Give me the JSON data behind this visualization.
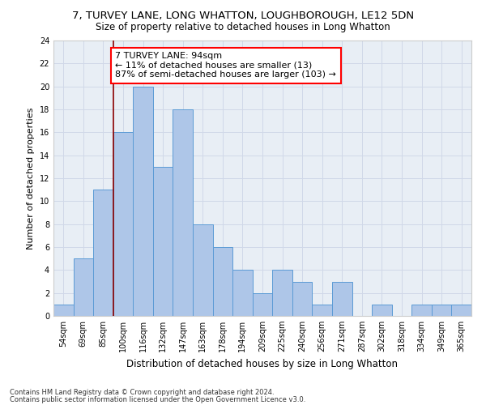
{
  "title1": "7, TURVEY LANE, LONG WHATTON, LOUGHBOROUGH, LE12 5DN",
  "title2": "Size of property relative to detached houses in Long Whatton",
  "xlabel": "Distribution of detached houses by size in Long Whatton",
  "ylabel": "Number of detached properties",
  "footnote1": "Contains HM Land Registry data © Crown copyright and database right 2024.",
  "footnote2": "Contains public sector information licensed under the Open Government Licence v3.0.",
  "categories": [
    "54sqm",
    "69sqm",
    "85sqm",
    "100sqm",
    "116sqm",
    "132sqm",
    "147sqm",
    "163sqm",
    "178sqm",
    "194sqm",
    "209sqm",
    "225sqm",
    "240sqm",
    "256sqm",
    "271sqm",
    "287sqm",
    "302sqm",
    "318sqm",
    "334sqm",
    "349sqm",
    "365sqm"
  ],
  "values": [
    1,
    5,
    11,
    16,
    20,
    13,
    18,
    8,
    6,
    4,
    2,
    4,
    3,
    1,
    3,
    0,
    1,
    0,
    1,
    1,
    1
  ],
  "bar_color": "#aec6e8",
  "bar_edge_color": "#5b9bd5",
  "grid_color": "#d0d8e8",
  "background_color": "#e8eef5",
  "annotation_text": "7 TURVEY LANE: 94sqm\n← 11% of detached houses are smaller (13)\n87% of semi-detached houses are larger (103) →",
  "annotation_box_color": "white",
  "annotation_border_color": "red",
  "vline_color": "#8b0000",
  "vline_index": 2.5,
  "ylim": [
    0,
    24
  ],
  "yticks": [
    0,
    2,
    4,
    6,
    8,
    10,
    12,
    14,
    16,
    18,
    20,
    22,
    24
  ],
  "title1_fontsize": 9.5,
  "title2_fontsize": 8.5,
  "xlabel_fontsize": 8.5,
  "ylabel_fontsize": 8,
  "tick_fontsize": 7,
  "annotation_fontsize": 8,
  "footnote_fontsize": 6
}
